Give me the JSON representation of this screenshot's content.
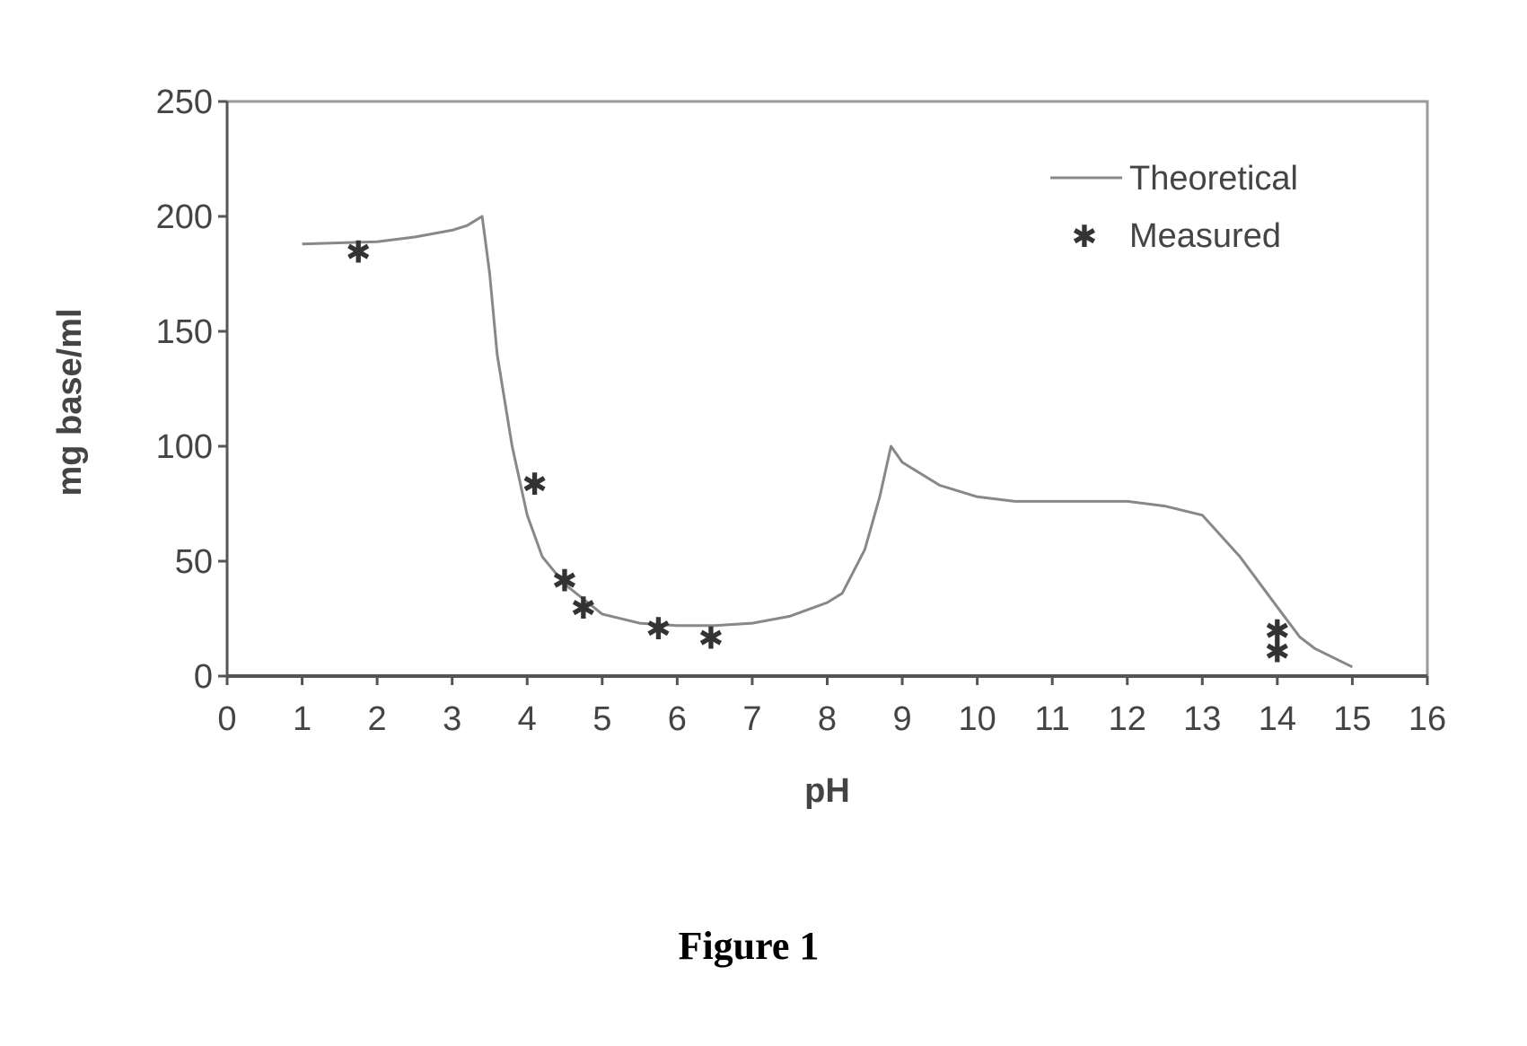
{
  "chart_data": {
    "type": "line",
    "xlabel": "pH",
    "ylabel": "mg base/ml",
    "xlim": [
      0,
      16
    ],
    "ylim": [
      0,
      250
    ],
    "xticks": [
      "0",
      "1",
      "2",
      "3",
      "4",
      "5",
      "6",
      "7",
      "8",
      "9",
      "10",
      "11",
      "12",
      "13",
      "14",
      "15",
      "16"
    ],
    "yticks": [
      "0",
      "50",
      "100",
      "150",
      "200",
      "250"
    ],
    "grid": false,
    "legend_position": "top-right",
    "series": [
      {
        "name": "Theoretical",
        "style": "line",
        "color": "#888888",
        "x": [
          1.0,
          2.0,
          2.5,
          3.0,
          3.2,
          3.4,
          3.5,
          3.6,
          3.8,
          4.0,
          4.2,
          4.5,
          5.0,
          5.5,
          6.0,
          6.5,
          7.0,
          7.5,
          8.0,
          8.2,
          8.5,
          8.7,
          8.85,
          9.0,
          9.5,
          10.0,
          10.5,
          11.0,
          11.5,
          12.0,
          12.5,
          13.0,
          13.5,
          14.0,
          14.3,
          14.5,
          15.0
        ],
        "y": [
          188,
          189,
          191,
          194,
          196,
          200,
          175,
          140,
          100,
          70,
          52,
          40,
          27,
          23,
          22,
          22,
          23,
          26,
          32,
          36,
          55,
          78,
          100,
          93,
          83,
          78,
          76,
          76,
          76,
          76,
          74,
          70,
          52,
          30,
          17,
          12,
          4
        ]
      },
      {
        "name": "Measured",
        "style": "marker",
        "marker": "*",
        "color": "#333333",
        "x": [
          1.75,
          4.1,
          4.5,
          4.75,
          5.75,
          6.45,
          14.0,
          14.0
        ],
        "y": [
          187,
          86,
          44,
          32,
          23,
          19,
          22,
          13
        ]
      }
    ]
  },
  "caption": "Figure 1"
}
